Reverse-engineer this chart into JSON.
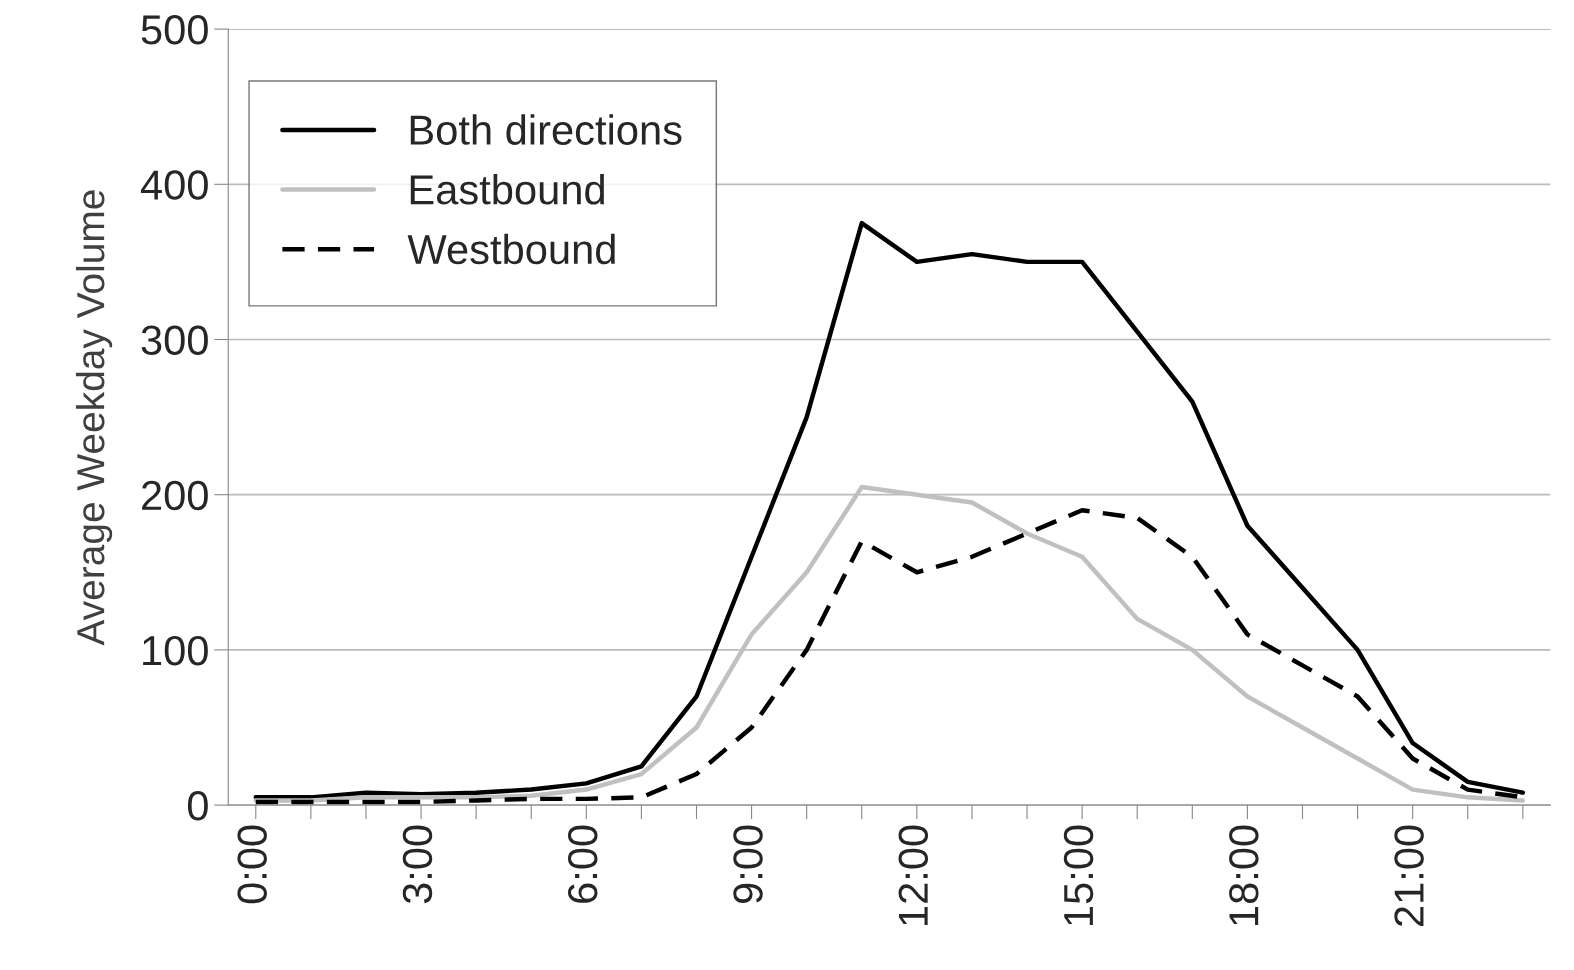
{
  "chart_data": {
    "type": "line",
    "ylabel": "Average Weekday Volume",
    "categories": [
      "0:00",
      null,
      null,
      "3:00",
      null,
      null,
      "6:00",
      null,
      null,
      "9:00",
      null,
      null,
      "12:00",
      null,
      null,
      "15:00",
      null,
      null,
      "18:00",
      null,
      null,
      "21:00",
      null,
      null
    ],
    "series": [
      {
        "name": "Both directions",
        "color": "#000000",
        "line_style": "solid",
        "values": [
          5,
          5,
          8,
          7,
          8,
          10,
          14,
          25,
          70,
          160,
          250,
          375,
          350,
          355,
          350,
          350,
          305,
          260,
          180,
          140,
          100,
          40,
          15,
          8
        ]
      },
      {
        "name": "Eastbound",
        "color": "#c0c0c0",
        "line_style": "solid",
        "values": [
          3,
          3,
          5,
          5,
          5,
          6,
          10,
          20,
          50,
          110,
          150,
          205,
          200,
          195,
          175,
          160,
          120,
          100,
          70,
          50,
          30,
          10,
          5,
          3
        ]
      },
      {
        "name": "Westbound",
        "color": "#000000",
        "line_style": "dashed",
        "values": [
          2,
          2,
          2,
          2,
          3,
          4,
          4,
          5,
          20,
          50,
          100,
          170,
          150,
          160,
          175,
          190,
          185,
          160,
          110,
          90,
          70,
          30,
          10,
          5
        ]
      }
    ],
    "ylim": [
      0,
      500
    ],
    "yticks": [
      0,
      100,
      200,
      300,
      400,
      500
    ],
    "grid": "y",
    "legend": "top left",
    "marker": "none"
  }
}
